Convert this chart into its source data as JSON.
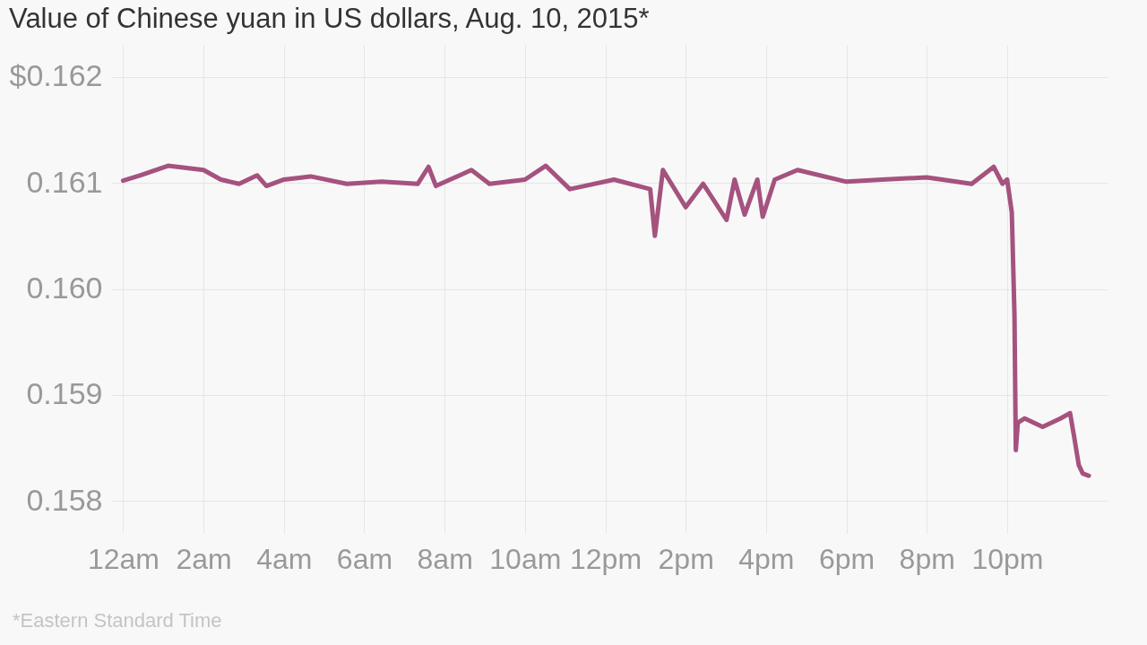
{
  "chart_data": {
    "type": "line",
    "title": "Value of Chinese yuan in US dollars, Aug. 10, 2015*",
    "annotations": [
      "*Eastern Standard Time"
    ],
    "x": [
      "2015-08-10T00:00",
      "2015-08-10T00:26",
      "2015-08-10T01:07",
      "2015-08-10T02:00",
      "2015-08-10T02:26",
      "2015-08-10T02:53",
      "2015-08-10T03:20",
      "2015-08-10T03:34",
      "2015-08-10T04:00",
      "2015-08-10T04:40",
      "2015-08-10T05:34",
      "2015-08-10T06:26",
      "2015-08-10T07:20",
      "2015-08-10T07:36",
      "2015-08-10T07:47",
      "2015-08-10T08:40",
      "2015-08-10T09:07",
      "2015-08-10T10:00",
      "2015-08-10T10:31",
      "2015-08-10T11:07",
      "2015-08-10T12:13",
      "2015-08-10T13:07",
      "2015-08-10T13:14",
      "2015-08-10T13:26",
      "2015-08-10T14:00",
      "2015-08-10T14:26",
      "2015-08-10T15:01",
      "2015-08-10T15:13",
      "2015-08-10T15:28",
      "2015-08-10T15:47",
      "2015-08-10T15:55",
      "2015-08-10T16:13",
      "2015-08-10T16:47",
      "2015-08-10T18:00",
      "2015-08-10T18:53",
      "2015-08-10T20:00",
      "2015-08-10T21:07",
      "2015-08-10T21:40",
      "2015-08-10T21:53",
      "2015-08-10T22:00",
      "2015-08-10T22:07",
      "2015-08-10T22:11",
      "2015-08-10T22:13",
      "2015-08-10T22:16",
      "2015-08-10T22:26",
      "2015-08-10T22:53",
      "2015-08-10T23:20",
      "2015-08-10T23:34",
      "2015-08-10T23:40",
      "2015-08-10T23:47",
      "2015-08-10T23:53",
      "2015-08-11T00:02"
    ],
    "series": [
      {
        "color": "#a5527f",
        "values": [
          0.16102,
          0.16107,
          0.16116,
          0.16112,
          0.16103,
          0.16099,
          0.16107,
          0.16097,
          0.16103,
          0.16106,
          0.16099,
          0.16101,
          0.16099,
          0.16115,
          0.16097,
          0.16112,
          0.16099,
          0.16103,
          0.16116,
          0.16094,
          0.16103,
          0.16094,
          0.1605,
          0.16112,
          0.16077,
          0.16099,
          0.16065,
          0.16103,
          0.1607,
          0.16103,
          0.16068,
          0.16103,
          0.16112,
          0.16101,
          0.16103,
          0.16105,
          0.16099,
          0.16115,
          0.16099,
          0.16103,
          0.16072,
          0.15975,
          0.15848,
          0.15874,
          0.15878,
          0.1587,
          0.15878,
          0.15883,
          0.15861,
          0.15834,
          0.15826,
          0.15824
        ]
      }
    ],
    "xlim": [
      "2015-08-09T23:42",
      "2015-08-11T00:30"
    ],
    "xticks": [
      {
        "value": "2015-08-10T00:00",
        "label": "12am"
      },
      {
        "value": "2015-08-10T02:00",
        "label": "2am"
      },
      {
        "value": "2015-08-10T04:00",
        "label": "4am"
      },
      {
        "value": "2015-08-10T06:00",
        "label": "6am"
      },
      {
        "value": "2015-08-10T08:00",
        "label": "8am"
      },
      {
        "value": "2015-08-10T10:00",
        "label": "10am"
      },
      {
        "value": "2015-08-10T12:00",
        "label": "12pm"
      },
      {
        "value": "2015-08-10T14:00",
        "label": "2pm"
      },
      {
        "value": "2015-08-10T16:00",
        "label": "4pm"
      },
      {
        "value": "2015-08-10T18:00",
        "label": "6pm"
      },
      {
        "value": "2015-08-10T20:00",
        "label": "8pm"
      },
      {
        "value": "2015-08-10T22:00",
        "label": "10pm"
      }
    ],
    "ylim": [
      0.1577,
      0.1623
    ],
    "yticks": [
      0.158,
      0.159,
      {
        "value": 0.16,
        "label": "0.160"
      },
      0.161,
      {
        "value": 0.162,
        "label": "$0.162"
      }
    ],
    "grid": true,
    "line_style": "solid",
    "marker": "none"
  }
}
